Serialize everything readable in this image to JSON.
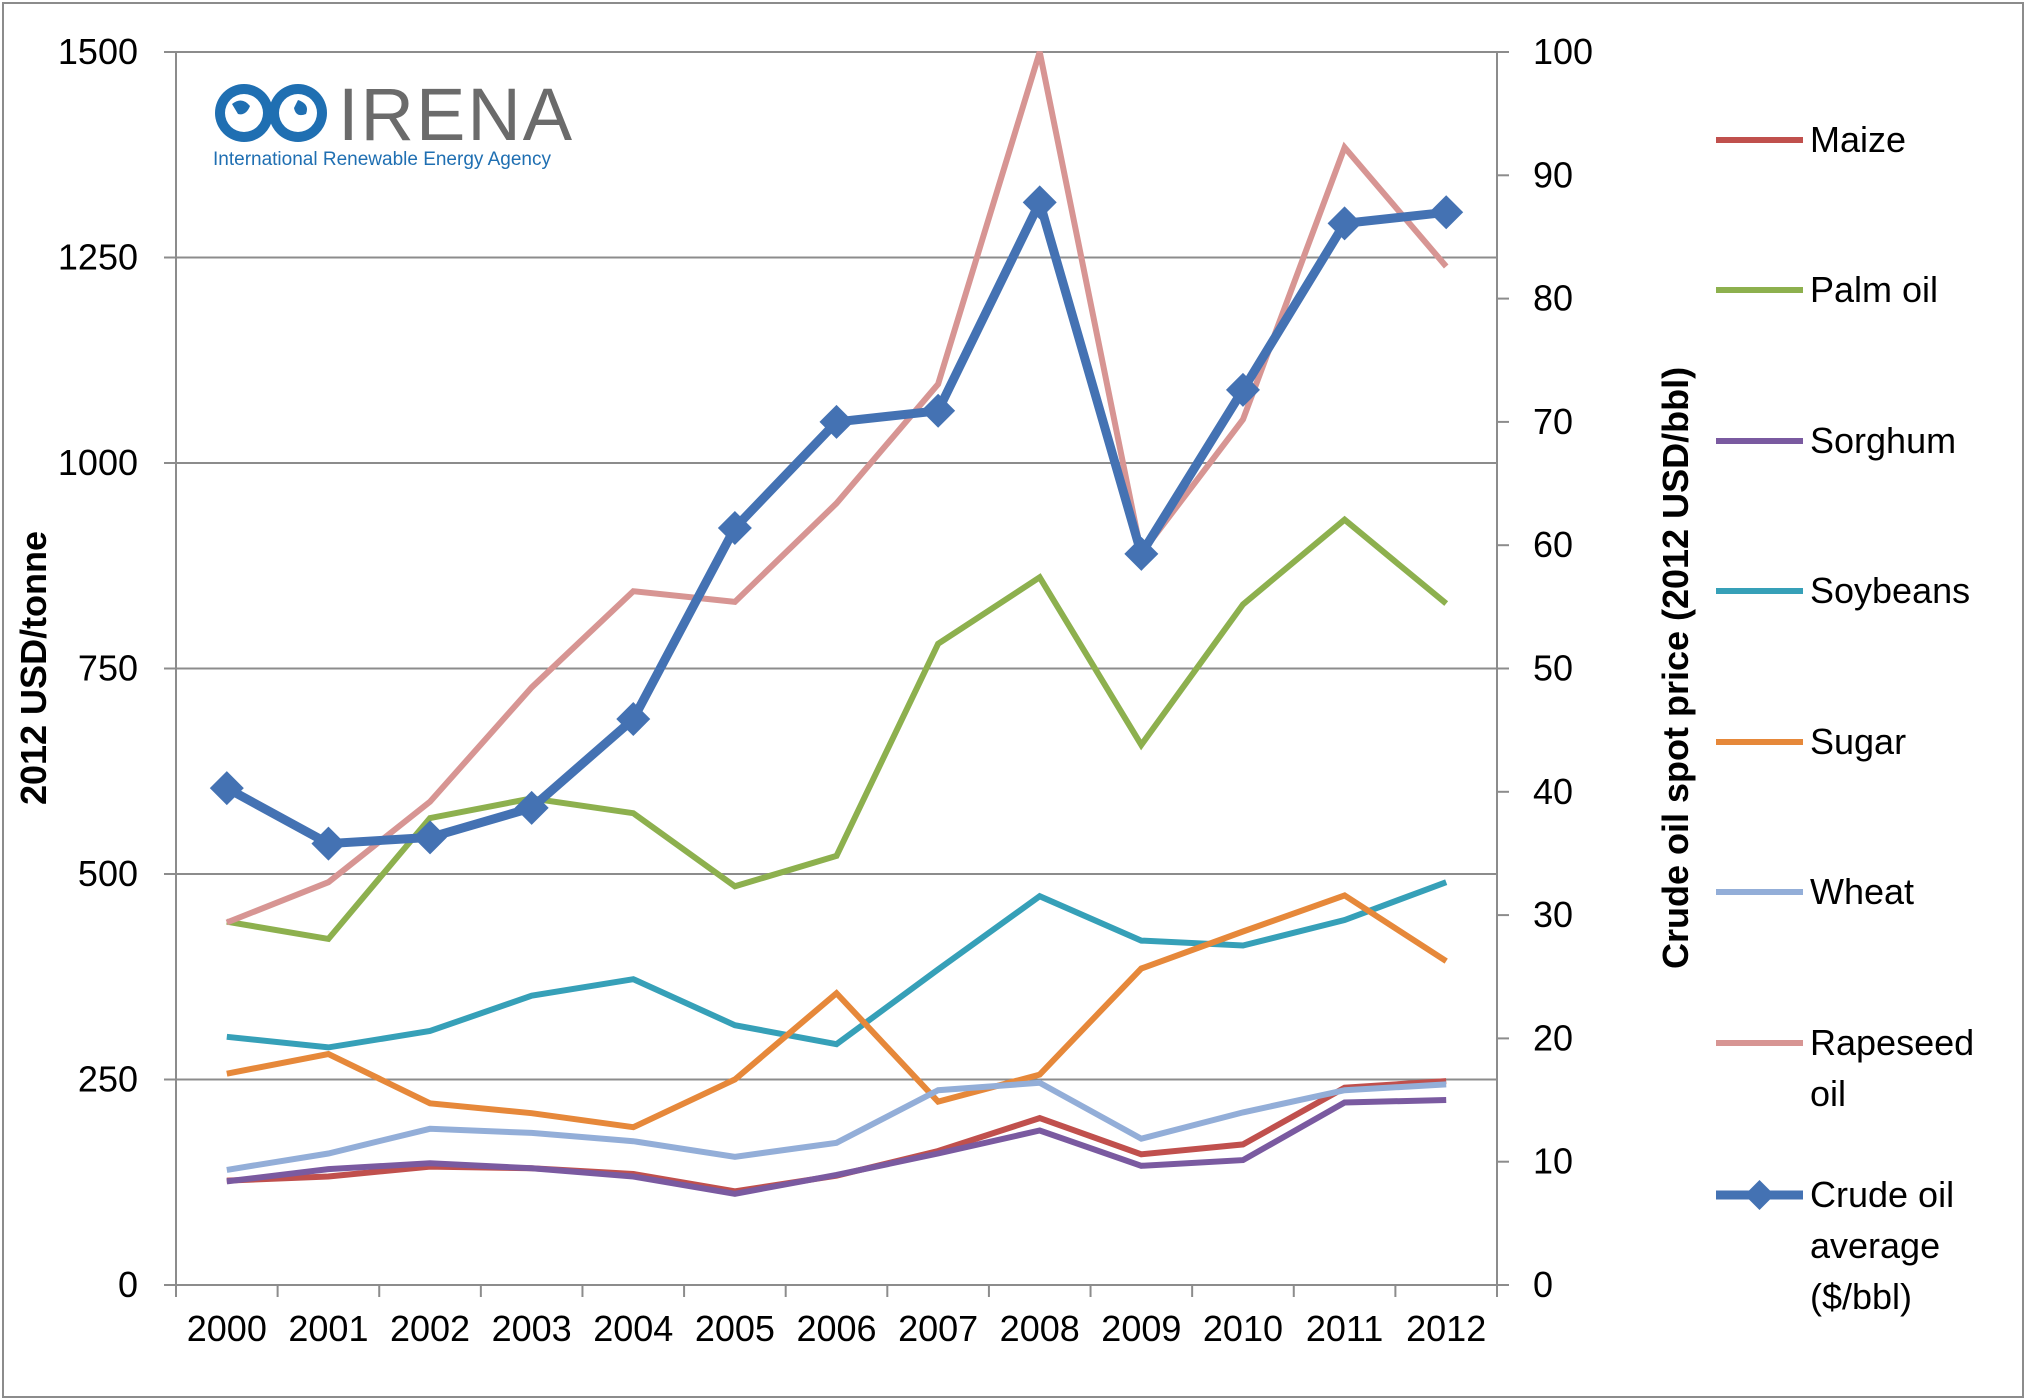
{
  "logo": {
    "name": "IRENA",
    "subtitle": "International Renewable Energy Agency"
  },
  "chart_data": {
    "type": "line",
    "title": "",
    "xlabel": "",
    "ylabel": "2012 USD/tonne",
    "y2label": "Crude oil spot price (2012 USD/bbl)",
    "ylim": [
      0,
      1500
    ],
    "y2lim": [
      0,
      100
    ],
    "yticks": [
      0,
      250,
      500,
      750,
      1000,
      1250,
      1500
    ],
    "y2ticks": [
      0,
      10,
      20,
      30,
      40,
      50,
      60,
      70,
      80,
      90,
      100
    ],
    "grid": true,
    "legend_position": "right",
    "categories": [
      "2000",
      "2001",
      "2002",
      "2003",
      "2004",
      "2005",
      "2006",
      "2007",
      "2008",
      "2009",
      "2010",
      "2011",
      "2012"
    ],
    "series": [
      {
        "name": "Maize",
        "axis": "left",
        "color": "#c0504d",
        "values": [
          127,
          132,
          144,
          142,
          135,
          114,
          133,
          163,
          203,
          159,
          171,
          240,
          248
        ]
      },
      {
        "name": "Palm oil",
        "axis": "left",
        "color": "#8db04e",
        "values": [
          442,
          421,
          568,
          592,
          574,
          485,
          522,
          780,
          861,
          657,
          828,
          931,
          829
        ]
      },
      {
        "name": "Sorghum",
        "axis": "left",
        "color": "#7a5aa0",
        "values": [
          126,
          141,
          148,
          142,
          132,
          111,
          134,
          160,
          188,
          145,
          152,
          222,
          225
        ]
      },
      {
        "name": "Soybeans",
        "axis": "left",
        "color": "#36a0b8",
        "values": [
          302,
          289,
          309,
          352,
          372,
          316,
          293,
          384,
          473,
          419,
          413,
          444,
          490
        ]
      },
      {
        "name": "Sugar",
        "axis": "left",
        "color": "#e6883a",
        "values": [
          257,
          281,
          221,
          209,
          192,
          250,
          355,
          223,
          256,
          385,
          430,
          474,
          394
        ]
      },
      {
        "name": "Wheat",
        "axis": "left",
        "color": "#93aed8",
        "values": [
          140,
          160,
          190,
          185,
          175,
          156,
          173,
          237,
          246,
          178,
          210,
          237,
          244
        ]
      },
      {
        "name": "Rapeseed oil",
        "axis": "left",
        "color": "#d79593",
        "values": [
          441,
          490,
          588,
          727,
          844,
          831,
          951,
          1096,
          1500,
          890,
          1053,
          1384,
          1239
        ]
      },
      {
        "name": "Crude oil average ($/bbl)",
        "axis": "right",
        "color": "#4472b3",
        "markers": "diamond",
        "values": [
          40.3,
          35.8,
          36.3,
          38.7,
          45.9,
          61.4,
          70.0,
          70.9,
          87.8,
          59.3,
          72.6,
          86.1,
          87.0
        ]
      }
    ]
  }
}
